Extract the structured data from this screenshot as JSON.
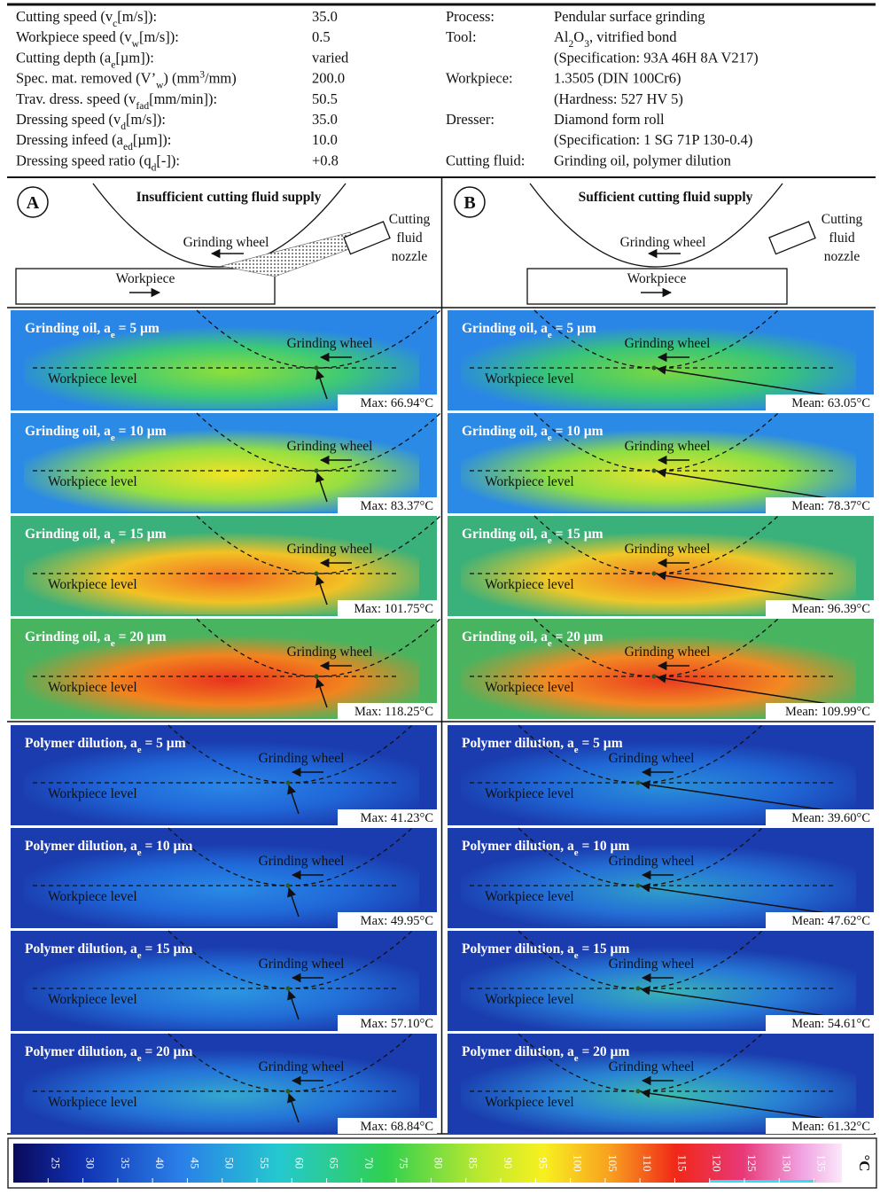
{
  "parameters": [
    {
      "label": [
        "Cutting speed (v",
        {
          "sub": "c"
        },
        "[m/s]):"
      ],
      "value": "35.0"
    },
    {
      "label": [
        "Workpiece speed (v",
        {
          "sub": "w"
        },
        "[m/s]):"
      ],
      "value": "0.5"
    },
    {
      "label": [
        "Cutting depth (a",
        {
          "sub": "e"
        },
        "[µm]):"
      ],
      "value": "varied"
    },
    {
      "label": [
        "Spec. mat. removed (V’",
        {
          "sub": "w"
        },
        ") (mm",
        {
          "sup": "3"
        },
        "/mm)"
      ],
      "value": "200.0"
    },
    {
      "label": [
        "Trav. dress. speed (v",
        {
          "sub": "fad"
        },
        "[mm/min]):"
      ],
      "value": "50.5"
    },
    {
      "label": [
        "Dressing speed (v",
        {
          "sub": "d"
        },
        "[m/s]):"
      ],
      "value": "35.0"
    },
    {
      "label": [
        "Dressing infeed (a",
        {
          "sub": "ed"
        },
        "[µm]):"
      ],
      "value": "10.0"
    },
    {
      "label": [
        "Dressing speed ratio (q",
        {
          "sub": "d"
        },
        "[-]):"
      ],
      "value": "+0.8"
    }
  ],
  "process": [
    {
      "label": "Process:",
      "lines": [
        [
          "Pendular surface grinding"
        ]
      ]
    },
    {
      "label": "Tool:",
      "lines": [
        [
          "Al",
          {
            "sub": "2"
          },
          "O",
          {
            "sub": "3"
          },
          ", vitrified bond"
        ],
        [
          "(Specification: 93A 46H 8A V217)"
        ]
      ]
    },
    {
      "label": "Workpiece:",
      "lines": [
        [
          "1.3505 (DIN 100Cr6)"
        ],
        [
          "(Hardness: 527 HV 5)"
        ]
      ]
    },
    {
      "label": "Dresser:",
      "lines": [
        [
          "Diamond form roll"
        ],
        [
          "(Specification: 1 SG 71P 130-0.4)"
        ]
      ]
    },
    {
      "label": "Cutting fluid:",
      "lines": [
        [
          "Grinding oil, polymer dilution"
        ]
      ]
    }
  ],
  "schematics": [
    {
      "letter": "A",
      "title": "Insufficient cutting fluid supply",
      "wheel": "Grinding wheel",
      "workpiece": "Workpiece",
      "nozzle": [
        "Cutting",
        "fluid",
        "nozzle"
      ]
    },
    {
      "letter": "B",
      "title": "Sufficient cutting fluid supply",
      "wheel": "Grinding wheel",
      "workpiece": "Workpiece",
      "nozzle": [
        "Cutting",
        "fluid",
        "nozzle"
      ]
    }
  ],
  "rows": [
    {
      "left": {
        "title": [
          "Grinding oil, a",
          {
            "sub": "e"
          },
          " = 5 µm"
        ],
        "wheel": "Grinding wheel",
        "level": "Workpiece level",
        "reading": "Max: 66.94°C"
      },
      "right": {
        "title": [
          "Grinding oil, a",
          {
            "sub": "e"
          },
          " = 5 µm"
        ],
        "wheel": "Grinding wheel",
        "level": "Workpiece level",
        "reading": "Mean: 63.05°C"
      }
    },
    {
      "left": {
        "title": [
          "Grinding oil, a",
          {
            "sub": "e"
          },
          " = 10 µm"
        ],
        "wheel": "Grinding wheel",
        "level": "Workpiece level",
        "reading": "Max: 83.37°C"
      },
      "right": {
        "title": [
          "Grinding oil, a",
          {
            "sub": "e"
          },
          " = 10 µm"
        ],
        "wheel": "Grinding wheel",
        "level": "Workpiece level",
        "reading": "Mean: 78.37°C"
      }
    },
    {
      "left": {
        "title": [
          "Grinding oil, a",
          {
            "sub": "e"
          },
          " = 15 µm"
        ],
        "wheel": "Grinding wheel",
        "level": "Workpiece level",
        "reading": "Max: 101.75°C"
      },
      "right": {
        "title": [
          "Grinding oil, a",
          {
            "sub": "e"
          },
          " = 15 µm"
        ],
        "wheel": "Grinding wheel",
        "level": "Workpiece level",
        "reading": "Mean: 96.39°C"
      }
    },
    {
      "left": {
        "title": [
          "Grinding oil, a",
          {
            "sub": "e"
          },
          " = 20 µm"
        ],
        "wheel": "Grinding wheel",
        "level": "Workpiece level",
        "reading": "Max: 118.25°C"
      },
      "right": {
        "title": [
          "Grinding oil, a",
          {
            "sub": "e"
          },
          " = 20 µm"
        ],
        "wheel": "Grinding wheel",
        "level": "Workpiece level",
        "reading": "Mean: 109.99°C"
      }
    },
    {
      "left": {
        "title": [
          "Polymer dilution, a",
          {
            "sub": "e"
          },
          " = 5 µm"
        ],
        "wheel": "Grinding wheel",
        "level": "Workpiece level",
        "reading": "Max: 41.23°C"
      },
      "right": {
        "title": [
          "Polymer dilution, a",
          {
            "sub": "e"
          },
          " = 5 µm"
        ],
        "wheel": "Grinding wheel",
        "level": "Workpiece level",
        "reading": "Mean: 39.60°C"
      }
    },
    {
      "left": {
        "title": [
          "Polymer dilution, a",
          {
            "sub": "e"
          },
          " = 10 µm"
        ],
        "wheel": "Grinding wheel",
        "level": "Workpiece level",
        "reading": "Max: 49.95°C"
      },
      "right": {
        "title": [
          "Polymer dilution, a",
          {
            "sub": "e"
          },
          " = 10 µm"
        ],
        "wheel": "Grinding wheel",
        "level": "Workpiece level",
        "reading": "Mean: 47.62°C"
      }
    },
    {
      "left": {
        "title": [
          "Polymer dilution, a",
          {
            "sub": "e"
          },
          " = 15 µm"
        ],
        "wheel": "Grinding wheel",
        "level": "Workpiece level",
        "reading": "Max: 57.10°C"
      },
      "right": {
        "title": [
          "Polymer dilution, a",
          {
            "sub": "e"
          },
          " = 15 µm"
        ],
        "wheel": "Grinding wheel",
        "level": "Workpiece level",
        "reading": "Mean: 54.61°C"
      }
    },
    {
      "left": {
        "title": [
          "Polymer dilution, a",
          {
            "sub": "e"
          },
          " = 20 µm"
        ],
        "wheel": "Grinding wheel",
        "level": "Workpiece level",
        "reading": "Max: 68.84°C"
      },
      "right": {
        "title": [
          "Polymer dilution, a",
          {
            "sub": "e"
          },
          " = 20 µm"
        ],
        "wheel": "Grinding wheel",
        "level": "Workpiece level",
        "reading": "Mean: 61.32°C"
      }
    }
  ],
  "colorbar": {
    "unit": "°C",
    "range": [
      20,
      139
    ],
    "ticks": [
      25,
      30,
      35,
      40,
      45,
      50,
      55,
      60,
      65,
      70,
      75,
      80,
      85,
      90,
      95,
      100,
      105,
      110,
      115,
      120,
      125,
      130,
      135
    ]
  }
}
